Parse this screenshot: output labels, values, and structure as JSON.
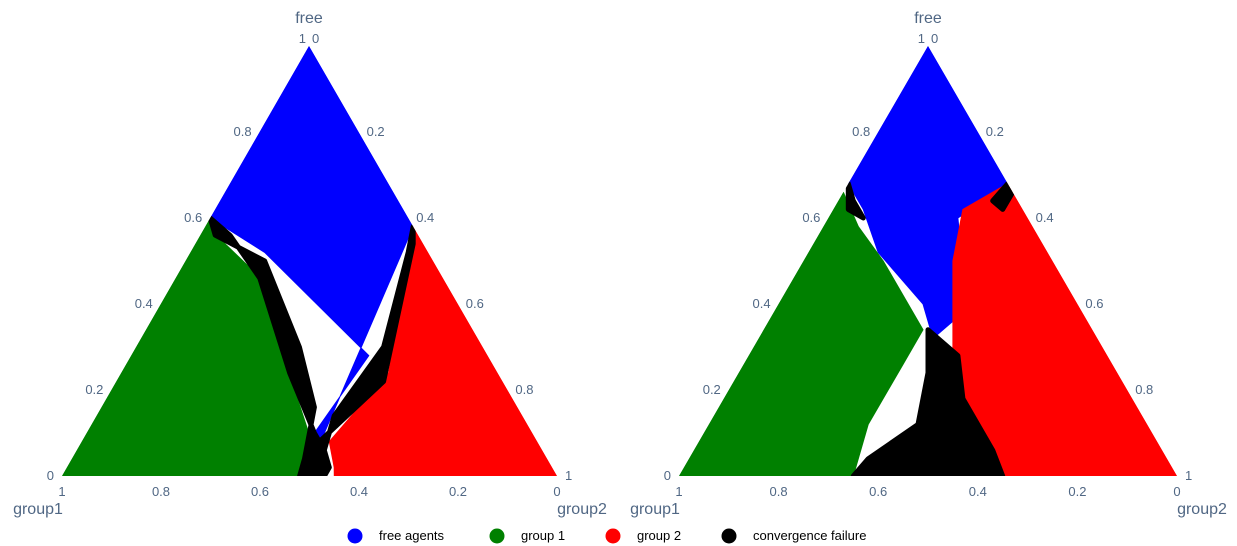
{
  "chart_data": [
    {
      "type": "ternary",
      "axes": {
        "a": {
          "title": "free",
          "ticks": [
            "0",
            "0.2",
            "0.4",
            "0.6",
            "0.8",
            "1"
          ]
        },
        "b": {
          "title": "group1",
          "ticks": [
            "0",
            "0.2",
            "0.4",
            "0.6",
            "0.8",
            "1"
          ]
        },
        "c": {
          "title": "group2",
          "ticks": [
            "0",
            "0.2",
            "0.4",
            "0.6",
            "0.8",
            "1"
          ]
        }
      },
      "regions": [
        {
          "class": "free",
          "polygon": [
            [
              1,
              0,
              0
            ],
            [
              0.6,
              0.4,
              0
            ],
            [
              0.52,
              0.33,
              0.15
            ],
            [
              0.28,
              0.24,
              0.48
            ],
            [
              0.1,
              0.44,
              0.46
            ],
            [
              0.02,
              0.49,
              0.49
            ],
            [
              0.58,
              0,
              0.42
            ]
          ]
        },
        {
          "class": "group1",
          "polygon": [
            [
              0.6,
              0.4,
              0
            ],
            [
              0,
              1,
              0
            ],
            [
              0,
              0.52,
              0.48
            ],
            [
              0.06,
              0.46,
              0.48
            ],
            [
              0.2,
              0.43,
              0.37
            ],
            [
              0.44,
              0.36,
              0.2
            ],
            [
              0.54,
              0.4,
              0.06
            ]
          ]
        },
        {
          "class": "group2",
          "polygon": [
            [
              0.58,
              0,
              0.42
            ],
            [
              0.24,
              0.22,
              0.54
            ],
            [
              0.08,
              0.42,
              0.5
            ],
            [
              0.02,
              0.44,
              0.54
            ],
            [
              0,
              0.45,
              0.55
            ],
            [
              0,
              0,
              1
            ]
          ]
        },
        {
          "class": "failure",
          "polygon": [
            [
              0.6,
              0.4,
              0
            ],
            [
              0.56,
              0.38,
              0.06
            ],
            [
              0.46,
              0.37,
              0.17
            ],
            [
              0.24,
              0.42,
              0.34
            ],
            [
              0.1,
              0.44,
              0.46
            ],
            [
              0.08,
              0.44,
              0.48
            ],
            [
              0.22,
              0.24,
              0.54
            ],
            [
              0.54,
              0.02,
              0.44
            ],
            [
              0.58,
              0,
              0.42
            ],
            [
              0.52,
              0.04,
              0.44
            ],
            [
              0.3,
              0.2,
              0.5
            ],
            [
              0.14,
              0.38,
              0.48
            ],
            [
              0.06,
              0.44,
              0.5
            ],
            [
              0.02,
              0.45,
              0.53
            ],
            [
              0,
              0.47,
              0.53
            ],
            [
              0,
              0.52,
              0.48
            ],
            [
              0.04,
              0.49,
              0.47
            ],
            [
              0.16,
              0.41,
              0.43
            ],
            [
              0.3,
              0.37,
              0.33
            ],
            [
              0.5,
              0.34,
              0.16
            ],
            [
              0.56,
              0.41,
              0.03
            ]
          ]
        }
      ]
    },
    {
      "type": "ternary",
      "axes": {
        "a": {
          "title": "free",
          "ticks": [
            "0",
            "0.2",
            "0.4",
            "0.6",
            "0.8",
            "1"
          ]
        },
        "b": {
          "title": "group1",
          "ticks": [
            "0",
            "0.2",
            "0.4",
            "0.6",
            "0.8",
            "1"
          ]
        },
        "c": {
          "title": "group2",
          "ticks": [
            "0",
            "0.2",
            "0.4",
            "0.6",
            "0.8",
            "1"
          ]
        }
      },
      "regions": [
        {
          "class": "free",
          "polygon": [
            [
              1,
              0,
              0
            ],
            [
              0.68,
              0.32,
              0
            ],
            [
              0.62,
              0.32,
              0.06
            ],
            [
              0.52,
              0.34,
              0.14
            ],
            [
              0.4,
              0.31,
              0.29
            ],
            [
              0.32,
              0.33,
              0.35
            ],
            [
              0.36,
              0.27,
              0.37
            ],
            [
              0.48,
              0.19,
              0.33
            ],
            [
              0.6,
              0.14,
              0.26
            ],
            [
              0.66,
              0.03,
              0.31
            ],
            [
              0.68,
              0,
              0.32
            ]
          ]
        },
        {
          "class": "group1",
          "polygon": [
            [
              0.66,
              0.34,
              0
            ],
            [
              0,
              1,
              0
            ],
            [
              0,
              0.65,
              0.35
            ],
            [
              0.12,
              0.56,
              0.32
            ],
            [
              0.26,
              0.42,
              0.32
            ],
            [
              0.34,
              0.34,
              0.32
            ],
            [
              0.5,
              0.34,
              0.16
            ],
            [
              0.58,
              0.35,
              0.07
            ]
          ]
        },
        {
          "class": "group2",
          "polygon": [
            [
              0.68,
              0,
              0.32
            ],
            [
              0.62,
              0.12,
              0.26
            ],
            [
              0.5,
              0.2,
              0.3
            ],
            [
              0.36,
              0.27,
              0.37
            ],
            [
              0.24,
              0.33,
              0.43
            ],
            [
              0.1,
              0.36,
              0.54
            ],
            [
              0,
              0.35,
              0.65
            ],
            [
              0,
              0,
              1
            ]
          ]
        },
        {
          "class": "failure",
          "polygon": [
            [
              0.34,
              0.33,
              0.33
            ],
            [
              0.24,
              0.38,
              0.38
            ],
            [
              0.12,
              0.46,
              0.42
            ],
            [
              0.04,
              0.6,
              0.36
            ],
            [
              0,
              0.65,
              0.35
            ],
            [
              0,
              0.35,
              0.65
            ],
            [
              0.06,
              0.34,
              0.6
            ],
            [
              0.18,
              0.34,
              0.48
            ],
            [
              0.28,
              0.3,
              0.42
            ]
          ]
        },
        {
          "class": "failure",
          "polygon": [
            [
              0.68,
              0.32,
              0
            ],
            [
              0.62,
              0.35,
              0.03
            ],
            [
              0.6,
              0.33,
              0.07
            ],
            [
              0.64,
              0.33,
              0.03
            ]
          ]
        },
        {
          "class": "failure",
          "polygon": [
            [
              0.68,
              0,
              0.32
            ],
            [
              0.64,
              0.05,
              0.31
            ],
            [
              0.62,
              0.04,
              0.34
            ],
            [
              0.66,
              0,
              0.34
            ]
          ]
        }
      ]
    }
  ],
  "legend": [
    {
      "label": "free agents",
      "class": "free"
    },
    {
      "label": "group 1",
      "class": "group1"
    },
    {
      "label": "group 2",
      "class": "group2"
    },
    {
      "label": "convergence failure",
      "class": "failure"
    }
  ],
  "colors": {
    "free": "#0000ff",
    "group1": "#008000",
    "group2": "#ff0000",
    "failure": "#000000",
    "tick": "#506784"
  }
}
